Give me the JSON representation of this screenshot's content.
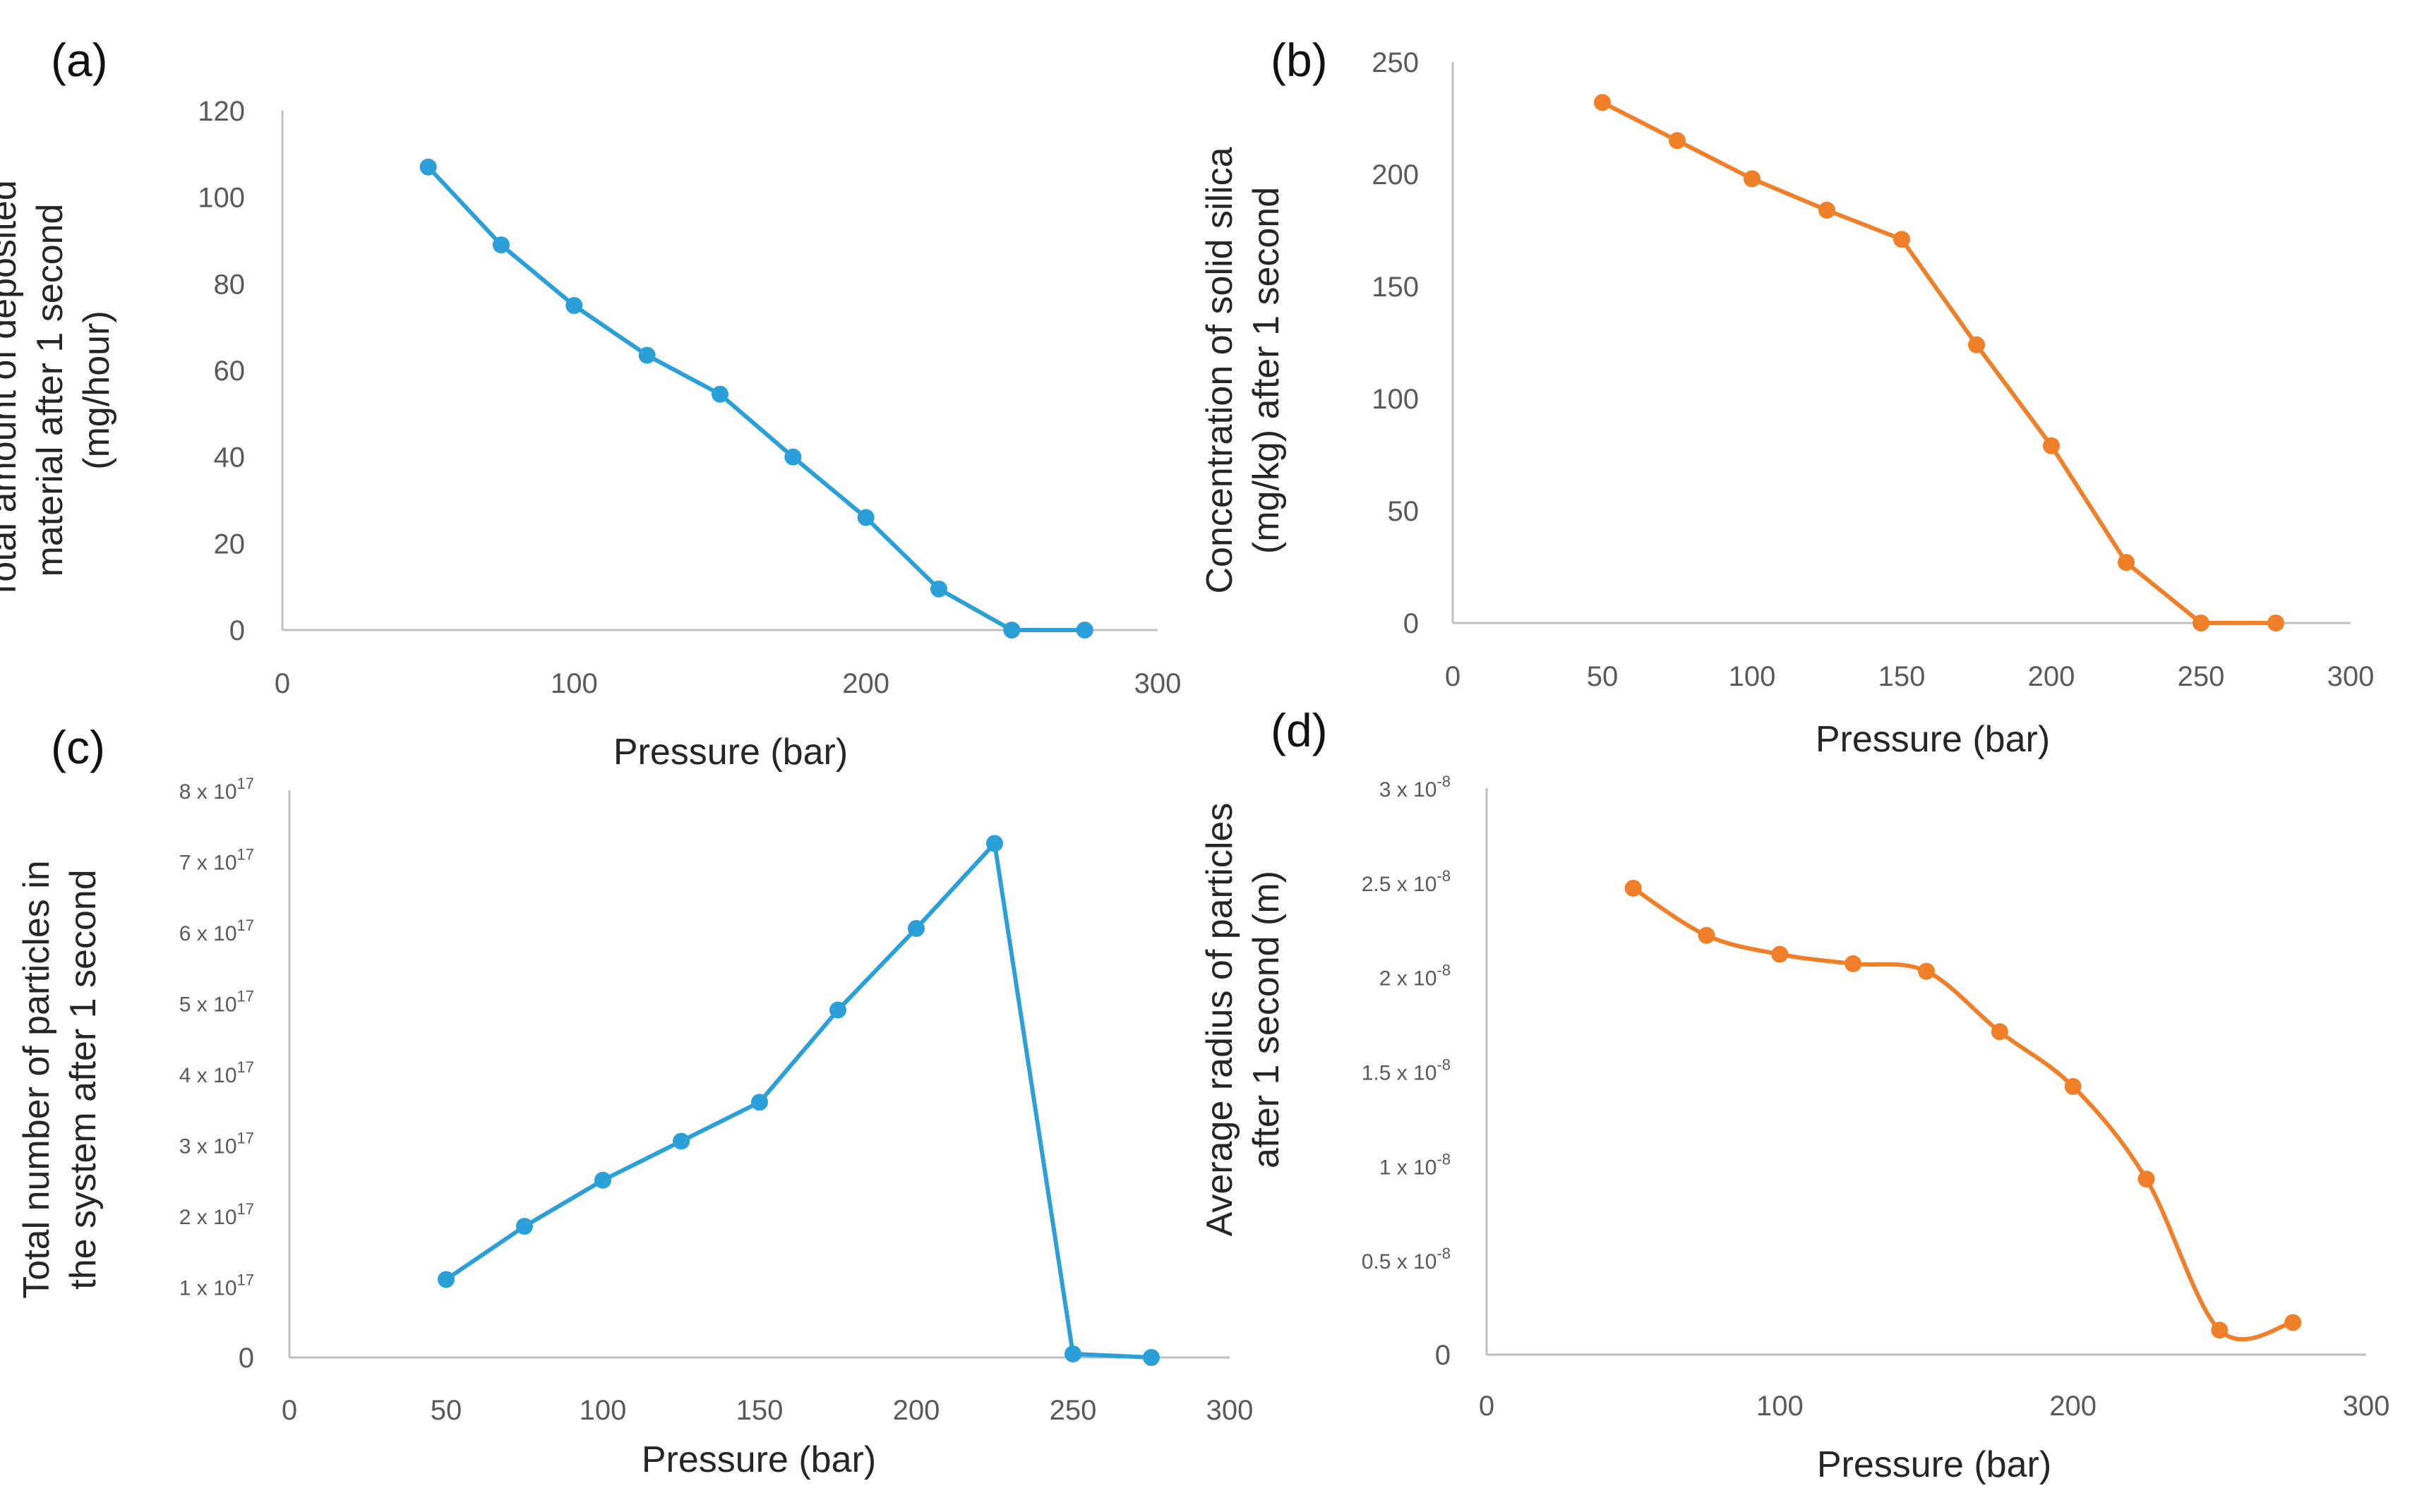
{
  "figure": {
    "colors": {
      "blue": "#2a9fd8",
      "orange": "#f07f2a",
      "axis": "#bfbfbf"
    }
  },
  "chart_data": [
    {
      "id": "a",
      "panel_label": "(a)",
      "type": "line",
      "color": "#2a9fd8",
      "x": [
        50,
        75,
        100,
        125,
        150,
        175,
        200,
        225,
        250,
        275
      ],
      "values": [
        107,
        89,
        75,
        63.5,
        54.5,
        40,
        26,
        9.5,
        0,
        0
      ],
      "xlabel": "Pressure (bar)",
      "ylabel_lines": [
        "Total amount of deposited",
        "material after 1 second",
        "(mg/hour)"
      ],
      "xlim": [
        0,
        300
      ],
      "ylim": [
        0,
        120
      ],
      "x_ticks": [
        "0",
        "100",
        "200",
        "300"
      ],
      "y_ticks": [
        "0",
        "20",
        "40",
        "60",
        "80",
        "100",
        "120"
      ],
      "smooth": false
    },
    {
      "id": "b",
      "panel_label": "(b)",
      "type": "line",
      "color": "#f07f2a",
      "x": [
        50,
        75,
        100,
        125,
        150,
        175,
        200,
        225,
        250,
        275
      ],
      "values": [
        232,
        215,
        198,
        184,
        171,
        124,
        79,
        27,
        0,
        0
      ],
      "xlabel": "Pressure (bar)",
      "ylabel_lines": [
        "Concentration of solid silica",
        "(mg/kg) after 1 second"
      ],
      "xlim": [
        0,
        300
      ],
      "ylim": [
        0,
        250
      ],
      "x_ticks": [
        "0",
        "50",
        "100",
        "150",
        "200",
        "250",
        "300"
      ],
      "y_ticks": [
        "0",
        "50",
        "100",
        "150",
        "200",
        "250"
      ],
      "smooth": false
    },
    {
      "id": "c",
      "panel_label": "(c)",
      "type": "line",
      "color": "#2a9fd8",
      "x": [
        50,
        75,
        100,
        125,
        150,
        175,
        200,
        225,
        250,
        275
      ],
      "values": [
        1.1,
        1.85,
        2.5,
        3.05,
        3.6,
        4.9,
        6.05,
        7.25,
        0.05,
        0
      ],
      "value_unit": "x 10^17",
      "xlabel": "Pressure (bar)",
      "ylabel_lines": [
        "Total number of particles in",
        "the system after 1 second"
      ],
      "xlim": [
        0,
        300
      ],
      "ylim": [
        0,
        8
      ],
      "x_ticks": [
        "0",
        "50",
        "100",
        "150",
        "200",
        "250",
        "300"
      ],
      "y_ticks": [
        {
          "base": "0",
          "exp": ""
        },
        {
          "base": "1 x 10",
          "exp": "17"
        },
        {
          "base": "2 x 10",
          "exp": "17"
        },
        {
          "base": "3 x 10",
          "exp": "17"
        },
        {
          "base": "4 x 10",
          "exp": "17"
        },
        {
          "base": "5 x 10",
          "exp": "17"
        },
        {
          "base": "6 x 10",
          "exp": "17"
        },
        {
          "base": "7 x 10",
          "exp": "17"
        },
        {
          "base": "8 x 10",
          "exp": "17"
        }
      ],
      "smooth": false
    },
    {
      "id": "d",
      "panel_label": "(d)",
      "type": "line",
      "color": "#f07f2a",
      "x": [
        50,
        75,
        100,
        125,
        150,
        175,
        200,
        225,
        250,
        275
      ],
      "values": [
        2.47,
        2.22,
        2.12,
        2.07,
        2.03,
        1.71,
        1.42,
        0.93,
        0.13,
        0.17
      ],
      "value_unit": "x 10^-8",
      "xlabel": "Pressure (bar)",
      "ylabel_lines": [
        "Average radius of particles",
        "after 1 second (m)"
      ],
      "xlim": [
        0,
        300
      ],
      "ylim": [
        0,
        3
      ],
      "x_ticks": [
        "0",
        "100",
        "200",
        "300"
      ],
      "y_ticks": [
        {
          "base": "0",
          "exp": ""
        },
        {
          "base": "0.5 x 10",
          "exp": "-8"
        },
        {
          "base": "1 x 10",
          "exp": "-8"
        },
        {
          "base": "1.5 x 10",
          "exp": "-8"
        },
        {
          "base": "2 x 10",
          "exp": "-8"
        },
        {
          "base": "2.5 x 10",
          "exp": "-8"
        },
        {
          "base": "3 x 10",
          "exp": "-8"
        }
      ],
      "smooth": true
    }
  ]
}
